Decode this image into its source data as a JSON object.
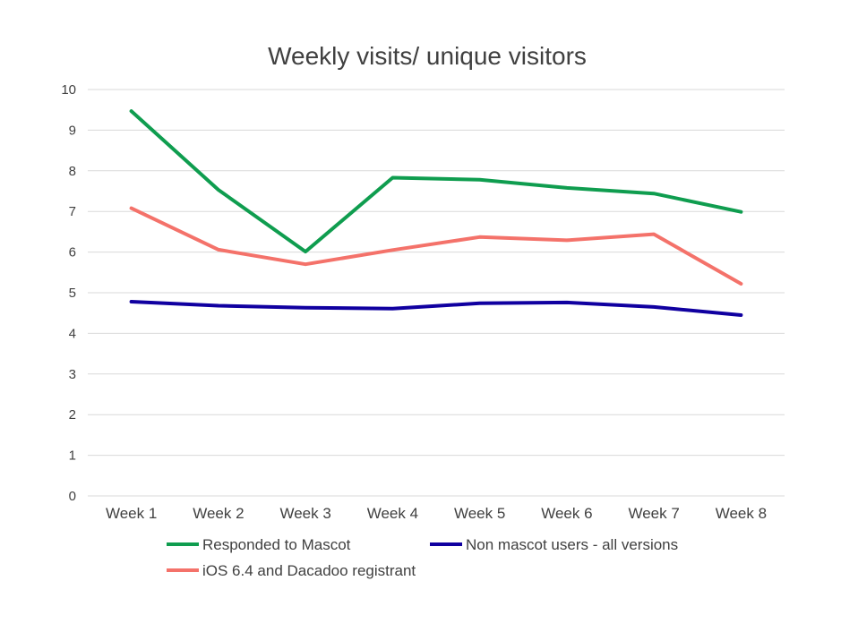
{
  "chart_data": {
    "type": "line",
    "title": "Weekly visits/ unique visitors",
    "xlabel": "",
    "ylabel": "",
    "categories": [
      "Week 1",
      "Week 2",
      "Week 3",
      "Week 4",
      "Week 5",
      "Week 6",
      "Week 7",
      "Week 8"
    ],
    "ylim": [
      0,
      10
    ],
    "yticks": [
      "0",
      "1",
      "2",
      "3",
      "4",
      "5",
      "6",
      "7",
      "8",
      "9",
      "10"
    ],
    "grid": true,
    "legend_position": "bottom",
    "series": [
      {
        "name": "Responded to Mascot",
        "color": "#0f9d4f",
        "values": [
          9.47,
          7.53,
          6.01,
          7.83,
          7.78,
          7.58,
          7.44,
          6.99
        ]
      },
      {
        "name": "Non mascot users - all versions",
        "color": "#1000a0",
        "values": [
          4.78,
          4.68,
          4.63,
          4.61,
          4.74,
          4.76,
          4.65,
          4.45
        ]
      },
      {
        "name": "iOS 6.4 and Dacadoo registrant",
        "color": "#f4726a",
        "values": [
          7.08,
          6.06,
          5.7,
          6.05,
          6.37,
          6.29,
          6.44,
          5.22
        ]
      }
    ]
  }
}
